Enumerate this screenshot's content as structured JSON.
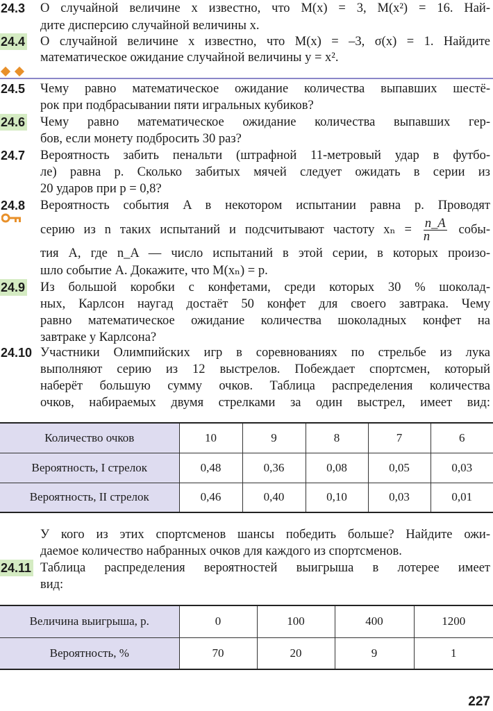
{
  "colors": {
    "highlight": "#d4ebc2",
    "accent_orange": "#e8902a",
    "rule": "#8a86c8",
    "table_header": "#dedcf0"
  },
  "problems": [
    {
      "number": "24.3",
      "highlighted": false,
      "lines": [
        "О случайной величине x известно, что M(x) = 3,  M(x²) = 16. Най-",
        "дите дисперсию случайной величины x."
      ]
    },
    {
      "number": "24.4",
      "highlighted": true,
      "lines": [
        "О случайной величине x известно, что M(x) = –3,  σ(x) = 1. Найдите",
        "математическое ожидание случайной величины y = x²."
      ]
    },
    {
      "number": "24.5",
      "highlighted": false,
      "lines": [
        "Чему равно математическое ожидание количества выпавших шестё-",
        "рок при подбрасывании пяти игральных кубиков?"
      ]
    },
    {
      "number": "24.6",
      "highlighted": true,
      "lines": [
        "Чему равно математическое ожидание количества выпавших гер-",
        "бов, если монету подбросить 30 раз?"
      ]
    },
    {
      "number": "24.7",
      "highlighted": false,
      "lines": [
        "Вероятность забить пенальти (штрафной 11-метровый удар в футбо-",
        "ле) равна p. Сколько забитых мячей следует ожидать в серии из",
        "20 ударов при p = 0,8?"
      ]
    },
    {
      "number": "24.8",
      "highlighted": false,
      "lines": [
        "Вероятность события A в некотором испытании равна p. Проводят",
        "тия A, где n_A — число испытаний в этой серии, в которых произо-",
        "шло событие A. Докажите, что  M(xₙ) = p."
      ],
      "fraction_line": {
        "before": "серию из n таких испытаний и подсчитывают частоту  xₙ =",
        "numerator": "n_A",
        "denominator": "n",
        "after": "собы-"
      }
    },
    {
      "number": "24.9",
      "highlighted": true,
      "lines": [
        "Из большой коробки с конфетами, среди которых 30 % шоколад-",
        "ных, Карлсон наугад достаёт 50 конфет для своего завтрака. Чему",
        "равно математическое ожидание количества шоколадных конфет на",
        "завтраке у Карлсона?"
      ]
    },
    {
      "number": "24.10",
      "highlighted": false,
      "lines": [
        "Участники Олимпийских игр в соревнованиях по стрельбе из лука",
        "выполняют серию из 12 выстрелов. Побеждает спортсмен, который",
        "наберёт большую сумму очков. Таблица распределения количества",
        "очков, набираемых двумя стрелками за один выстрел, имеет вид:"
      ],
      "after_table": [
        "У кого из этих спортсменов шансы победить больше? Найдите ожи-",
        "даемое количество набранных очков для каждого из спортсменов."
      ]
    },
    {
      "number": "24.11",
      "highlighted": true,
      "lines": [
        "Таблица распределения вероятностей выигрыша в лотерее имеет",
        "вид:"
      ]
    }
  ],
  "table1": {
    "rows": [
      [
        "Количество очков",
        "10",
        "9",
        "8",
        "7",
        "6"
      ],
      [
        "Вероятность, I стрелок",
        "0,48",
        "0,36",
        "0,08",
        "0,05",
        "0,03"
      ],
      [
        "Вероятность, II стрелок",
        "0,46",
        "0,40",
        "0,10",
        "0,03",
        "0,01"
      ]
    ]
  },
  "table2": {
    "rows": [
      [
        "Величина выигрыша, р.",
        "0",
        "100",
        "400",
        "1200"
      ],
      [
        "Вероятность, %",
        "70",
        "20",
        "9",
        "1"
      ]
    ]
  },
  "icons": {
    "section_marker": "diamond-icon",
    "key": "key-icon"
  },
  "page_number": "227"
}
